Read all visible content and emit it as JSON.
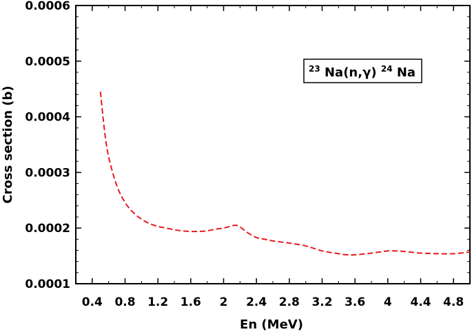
{
  "chart_data": {
    "type": "line",
    "title": "",
    "xlabel": "En (MeV)",
    "ylabel": "Cross section (b)",
    "xlim": [
      0.2,
      5.0
    ],
    "ylim": [
      0.0001,
      0.0006
    ],
    "x_ticks": [
      "0.4",
      "0.8",
      "1.2",
      "1.6",
      "2",
      "2.4",
      "2.8",
      "3.2",
      "3.6",
      "4",
      "4.4",
      "4.8"
    ],
    "y_ticks": [
      "0.0001",
      "0.0002",
      "0.0003",
      "0.0004",
      "0.0005",
      "0.0006"
    ],
    "grid": false,
    "legend": {
      "position": "top-right",
      "label": {
        "sup1": "23",
        "part1": "Na(n,γ)",
        "sup2": "24",
        "part2": "Na"
      }
    },
    "series": [
      {
        "color": "#e8191b",
        "style": "dashed",
        "x": [
          0.5,
          0.55,
          0.6,
          0.7,
          0.8,
          0.9,
          1.0,
          1.1,
          1.2,
          1.3,
          1.4,
          1.5,
          1.6,
          1.7,
          1.8,
          1.9,
          2.0,
          2.1,
          2.15,
          2.2,
          2.3,
          2.4,
          2.5,
          2.6,
          2.8,
          3.0,
          3.2,
          3.4,
          3.5,
          3.6,
          3.8,
          4.0,
          4.1,
          4.2,
          4.4,
          4.6,
          4.8,
          5.0
        ],
        "y": [
          0.000445,
          0.000375,
          0.000328,
          0.000276,
          0.000246,
          0.000228,
          0.000216,
          0.000208,
          0.000203,
          0.0002,
          0.000197,
          0.000195,
          0.000194,
          0.000194,
          0.000195,
          0.000198,
          0.0002,
          0.000204,
          0.000205,
          0.000202,
          0.000191,
          0.000183,
          0.00018,
          0.000177,
          0.000173,
          0.000168,
          0.000159,
          0.000154,
          0.000152,
          0.000152,
          0.000155,
          0.000159,
          0.000159,
          0.000158,
          0.000155,
          0.000154,
          0.000154,
          0.000157
        ]
      }
    ]
  }
}
